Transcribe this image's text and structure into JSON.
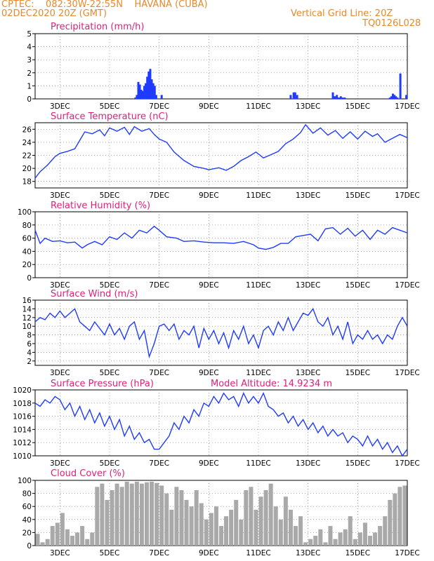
{
  "header": {
    "line1_left": "CPTEC:    082:30W-22:55N    HAVANA (CUBA)",
    "line2_left": "02DEC2020 20Z (GMT)",
    "line2_right": "Vertical Grid Line: 20Z",
    "line3_right": "TQ0126L028"
  },
  "colors": {
    "header": "#e8892a",
    "panel_title": "#e0207a",
    "series": "#1f3bff",
    "cloud": "#a9a9a9",
    "axis": "#000000"
  },
  "x_axis": {
    "ticks": [
      "3DEC",
      "5DEC",
      "7DEC",
      "9DEC",
      "11DEC",
      "13DEC",
      "15DEC",
      "17DEC"
    ],
    "tick_days": [
      3,
      5,
      7,
      9,
      11,
      13,
      15,
      17
    ],
    "range_days": [
      2.0,
      17.0
    ]
  },
  "chart_data": [
    {
      "type": "bar",
      "title": "Precipitation (mm/h)",
      "ylim": [
        0,
        5
      ],
      "yticks": [
        0,
        1,
        2,
        3,
        4,
        5
      ],
      "grid": true,
      "x": [
        6.04,
        6.1,
        6.16,
        6.22,
        6.28,
        6.34,
        6.4,
        6.46,
        6.52,
        6.58,
        6.64,
        6.7,
        6.76,
        6.82,
        6.88,
        7.1,
        12.3,
        12.42,
        12.48,
        12.56,
        14.0,
        14.08,
        14.16,
        14.24,
        14.32,
        14.4,
        14.48,
        16.3,
        16.36,
        16.42,
        16.48,
        16.54,
        16.6,
        16.72,
        16.96
      ],
      "values": [
        0.1,
        0.3,
        1.3,
        1.1,
        0.7,
        0.6,
        1.0,
        1.2,
        1.7,
        2.1,
        2.3,
        1.5,
        1.2,
        1.0,
        0.3,
        0.3,
        0.3,
        0.5,
        0.5,
        0.3,
        0.5,
        0.2,
        0.3,
        0.1,
        0.2,
        0.1,
        0.1,
        0.1,
        0.2,
        0.4,
        0.3,
        0.2,
        0.1,
        1.95,
        0.3
      ]
    },
    {
      "type": "line",
      "title": "Surface Temperature (nC)",
      "ylim": [
        17,
        27
      ],
      "yticks": [
        18,
        20,
        22,
        24,
        26
      ],
      "grid": true,
      "x": [
        2.0,
        2.2,
        2.5,
        2.8,
        3.0,
        3.3,
        3.6,
        3.8,
        4.0,
        4.3,
        4.6,
        4.8,
        5.0,
        5.3,
        5.6,
        5.8,
        6.0,
        6.3,
        6.6,
        6.8,
        7.0,
        7.3,
        7.6,
        8.0,
        8.4,
        8.8,
        9.0,
        9.4,
        9.7,
        10.0,
        10.3,
        10.6,
        10.9,
        11.2,
        11.5,
        11.8,
        12.1,
        12.4,
        12.7,
        12.9,
        13.2,
        13.5,
        13.8,
        14.1,
        14.4,
        14.7,
        15.0,
        15.3,
        15.6,
        15.8,
        16.1,
        16.4,
        16.7,
        17.0
      ],
      "values": [
        18.5,
        19.5,
        20.5,
        21.8,
        22.3,
        22.6,
        23.0,
        24.3,
        25.6,
        25.3,
        25.9,
        25.0,
        26.2,
        25.7,
        26.3,
        25.2,
        26.4,
        25.7,
        26.1,
        25.2,
        24.5,
        24.0,
        22.5,
        21.2,
        20.3,
        20.0,
        19.8,
        20.1,
        19.7,
        20.3,
        21.2,
        21.8,
        22.5,
        21.6,
        22.1,
        22.6,
        23.8,
        24.5,
        25.5,
        26.7,
        25.4,
        26.2,
        25.1,
        25.8,
        24.6,
        25.6,
        24.5,
        25.7,
        24.9,
        25.3,
        24.0,
        24.6,
        25.2,
        24.7
      ]
    },
    {
      "type": "line",
      "title": "Relative Humidity (%)",
      "ylim": [
        0,
        100
      ],
      "yticks": [
        0,
        20,
        40,
        60,
        80,
        100
      ],
      "grid": true,
      "x": [
        2.0,
        2.2,
        2.4,
        2.7,
        3.0,
        3.3,
        3.6,
        3.9,
        4.1,
        4.4,
        4.7,
        5.0,
        5.3,
        5.6,
        5.9,
        6.2,
        6.5,
        6.8,
        7.0,
        7.3,
        7.7,
        8.0,
        8.4,
        8.8,
        9.2,
        9.6,
        10.0,
        10.4,
        10.8,
        11.0,
        11.3,
        11.6,
        11.9,
        12.2,
        12.5,
        12.8,
        13.1,
        13.4,
        13.7,
        14.0,
        14.3,
        14.6,
        14.9,
        15.2,
        15.5,
        15.8,
        16.1,
        16.4,
        16.7,
        17.0
      ],
      "values": [
        72,
        52,
        60,
        55,
        56,
        53,
        54,
        45,
        50,
        55,
        50,
        62,
        58,
        68,
        60,
        72,
        68,
        78,
        72,
        62,
        60,
        55,
        56,
        54,
        53,
        53,
        52,
        55,
        50,
        45,
        43,
        46,
        52,
        52,
        62,
        64,
        66,
        56,
        74,
        76,
        66,
        75,
        63,
        72,
        58,
        72,
        66,
        76,
        72,
        68
      ]
    },
    {
      "type": "line",
      "title": "Surface Wind (m/s)",
      "ylim": [
        1,
        16
      ],
      "yticks": [
        2,
        4,
        6,
        8,
        10,
        12,
        14,
        16
      ],
      "grid": true,
      "x": [
        2.0,
        2.2,
        2.4,
        2.6,
        2.8,
        3.0,
        3.2,
        3.4,
        3.6,
        3.8,
        4.0,
        4.2,
        4.4,
        4.6,
        4.8,
        5.0,
        5.2,
        5.4,
        5.6,
        5.8,
        6.0,
        6.2,
        6.4,
        6.6,
        6.8,
        7.0,
        7.2,
        7.4,
        7.6,
        7.8,
        8.0,
        8.2,
        8.4,
        8.6,
        8.8,
        9.0,
        9.2,
        9.4,
        9.6,
        9.8,
        10.0,
        10.2,
        10.4,
        10.6,
        10.8,
        11.0,
        11.2,
        11.4,
        11.6,
        11.8,
        12.0,
        12.2,
        12.4,
        12.6,
        12.8,
        13.0,
        13.2,
        13.4,
        13.6,
        13.8,
        14.0,
        14.2,
        14.4,
        14.6,
        14.8,
        15.0,
        15.2,
        15.4,
        15.6,
        15.8,
        16.0,
        16.2,
        16.4,
        16.6,
        16.8,
        17.0
      ],
      "values": [
        11,
        12,
        11.5,
        13,
        12,
        13.5,
        12,
        13,
        14,
        11,
        10,
        9,
        11,
        9.5,
        8,
        10.5,
        8,
        9.5,
        7,
        10,
        11,
        7,
        9,
        3,
        6,
        10,
        10.5,
        9,
        10.5,
        7,
        9,
        8,
        10,
        5,
        9.5,
        7,
        9,
        6,
        8.5,
        5,
        9,
        7,
        10,
        6,
        8,
        5,
        9,
        10,
        8,
        11,
        9,
        12,
        9,
        11,
        13,
        12.5,
        14,
        11,
        10,
        12,
        8,
        10,
        7,
        11,
        6,
        8,
        7,
        9,
        7,
        8,
        6,
        8,
        7,
        10,
        12,
        10
      ]
    },
    {
      "type": "line",
      "title": "Surface Pressure (hPa)",
      "subtitle": "Model Altitude: 14.9234  m",
      "ylim": [
        1010,
        1020
      ],
      "yticks": [
        1010,
        1012,
        1014,
        1016,
        1018,
        1020
      ],
      "grid": true,
      "x": [
        2.0,
        2.2,
        2.4,
        2.6,
        2.8,
        3.0,
        3.2,
        3.4,
        3.6,
        3.8,
        4.0,
        4.2,
        4.4,
        4.6,
        4.8,
        5.0,
        5.2,
        5.4,
        5.6,
        5.8,
        6.0,
        6.2,
        6.4,
        6.6,
        6.8,
        7.0,
        7.2,
        7.4,
        7.6,
        7.8,
        8.0,
        8.2,
        8.4,
        8.6,
        8.8,
        9.0,
        9.2,
        9.4,
        9.6,
        9.8,
        10.0,
        10.2,
        10.4,
        10.6,
        10.8,
        11.0,
        11.2,
        11.4,
        11.6,
        11.8,
        12.0,
        12.2,
        12.4,
        12.6,
        12.8,
        13.0,
        13.2,
        13.4,
        13.6,
        13.8,
        14.0,
        14.2,
        14.4,
        14.6,
        14.8,
        15.0,
        15.2,
        15.4,
        15.6,
        15.8,
        16.0,
        16.2,
        16.4,
        16.6,
        16.8,
        17.0
      ],
      "values": [
        1018,
        1017.5,
        1018.5,
        1018,
        1019,
        1018.5,
        1017,
        1018,
        1016,
        1017.5,
        1015.5,
        1017,
        1015,
        1016.5,
        1014.5,
        1016,
        1014,
        1015.5,
        1013,
        1014.5,
        1012.5,
        1013.5,
        1012,
        1012.5,
        1011,
        1011,
        1012,
        1013,
        1015,
        1014,
        1016,
        1015,
        1017,
        1016,
        1018,
        1017.5,
        1019,
        1018,
        1019.5,
        1018.5,
        1019,
        1017.5,
        1019.5,
        1018,
        1019,
        1018,
        1019.5,
        1017.5,
        1017,
        1016,
        1016.5,
        1015,
        1016,
        1014.5,
        1015.5,
        1014,
        1015,
        1013.5,
        1014.5,
        1013,
        1014,
        1013,
        1013.5,
        1012,
        1013,
        1012.5,
        1011.5,
        1013,
        1011.5,
        1012.5,
        1011,
        1012,
        1010.5,
        1011.5,
        1010,
        1011
      ]
    },
    {
      "type": "bar",
      "title": "Cloud Cover (%)",
      "ylim": [
        0,
        100
      ],
      "yticks": [
        0,
        20,
        40,
        60,
        80,
        100
      ],
      "grid": true,
      "x": [
        2.1,
        2.3,
        2.5,
        2.7,
        2.9,
        3.1,
        3.3,
        3.5,
        3.7,
        3.9,
        4.1,
        4.3,
        4.5,
        4.7,
        4.9,
        5.1,
        5.3,
        5.5,
        5.7,
        5.9,
        6.1,
        6.3,
        6.5,
        6.7,
        6.9,
        7.1,
        7.3,
        7.5,
        7.7,
        7.9,
        8.1,
        8.3,
        8.5,
        8.7,
        8.9,
        9.1,
        9.3,
        9.5,
        9.7,
        9.9,
        10.1,
        10.3,
        10.5,
        10.7,
        10.9,
        11.1,
        11.3,
        11.5,
        11.7,
        11.9,
        12.1,
        12.3,
        12.5,
        12.7,
        12.9,
        13.1,
        13.3,
        13.5,
        13.7,
        13.9,
        14.1,
        14.3,
        14.5,
        14.7,
        14.9,
        15.1,
        15.3,
        15.5,
        15.7,
        15.9,
        16.1,
        16.3,
        16.5,
        16.7,
        16.9
      ],
      "values": [
        18,
        5,
        10,
        30,
        35,
        50,
        25,
        15,
        20,
        30,
        10,
        20,
        90,
        95,
        70,
        85,
        95,
        90,
        98,
        95,
        98,
        95,
        97,
        98,
        96,
        92,
        80,
        55,
        90,
        85,
        70,
        60,
        85,
        65,
        40,
        50,
        60,
        30,
        45,
        55,
        70,
        40,
        85,
        90,
        55,
        75,
        85,
        95,
        60,
        40,
        75,
        55,
        30,
        45,
        5,
        10,
        15,
        25,
        5,
        30,
        10,
        20,
        25,
        45,
        10,
        20,
        35,
        15,
        20,
        30,
        45,
        70,
        80,
        90,
        92
      ]
    }
  ]
}
